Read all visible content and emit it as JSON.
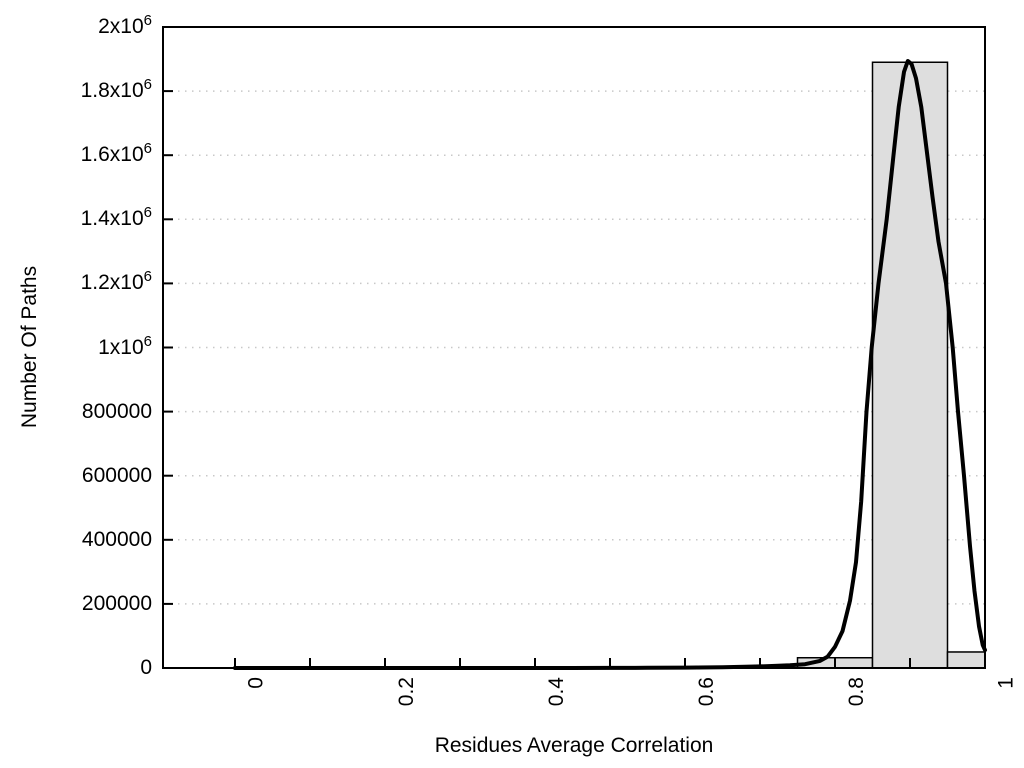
{
  "chart_data": {
    "type": "bar",
    "subtype": "histogram-with-fit-curve",
    "title": "",
    "xlabel": "Residues Average Correlation",
    "ylabel": "Number Of Paths",
    "xlim": [
      -0.096,
      1.0
    ],
    "ylim": [
      0,
      2000000
    ],
    "grid": "horizontal-dotted",
    "legend": "none",
    "x_ticks_all": [
      0,
      0.1,
      0.2,
      0.3,
      0.4,
      0.5,
      0.6,
      0.7,
      0.8,
      0.9,
      1.0
    ],
    "x_tick_labels": [
      {
        "value": 0,
        "label": "0"
      },
      {
        "value": 0.2,
        "label": "0.2"
      },
      {
        "value": 0.4,
        "label": "0.4"
      },
      {
        "value": 0.6,
        "label": "0.6"
      },
      {
        "value": 0.8,
        "label": "0.8"
      },
      {
        "value": 1.0,
        "label": "1"
      }
    ],
    "y_ticks": [
      {
        "value": 0,
        "base": "0",
        "exp": null
      },
      {
        "value": 200000,
        "base": "200000",
        "exp": null
      },
      {
        "value": 400000,
        "base": "400000",
        "exp": null
      },
      {
        "value": 600000,
        "base": "600000",
        "exp": null
      },
      {
        "value": 800000,
        "base": "800000",
        "exp": null
      },
      {
        "value": 1000000,
        "base": "1x10",
        "exp": "6"
      },
      {
        "value": 1200000,
        "base": "1.2x10",
        "exp": "6"
      },
      {
        "value": 1400000,
        "base": "1.4x10",
        "exp": "6"
      },
      {
        "value": 1600000,
        "base": "1.6x10",
        "exp": "6"
      },
      {
        "value": 1800000,
        "base": "1.8x10",
        "exp": "6"
      },
      {
        "value": 2000000,
        "base": "2x10",
        "exp": "6"
      }
    ],
    "bars": [
      {
        "x0": 0.75,
        "x1": 0.85,
        "count": 32000
      },
      {
        "x0": 0.85,
        "x1": 0.95,
        "count": 1890000
      },
      {
        "x0": 0.95,
        "x1": 1.0,
        "count": 50000
      }
    ],
    "curve": {
      "name": "fit-curve",
      "peak": {
        "x": 0.897,
        "y": 1894000
      },
      "points": [
        [
          0.0,
          0
        ],
        [
          0.05,
          0
        ],
        [
          0.1,
          0
        ],
        [
          0.15,
          0
        ],
        [
          0.2,
          0
        ],
        [
          0.25,
          0
        ],
        [
          0.3,
          0
        ],
        [
          0.35,
          0
        ],
        [
          0.4,
          0
        ],
        [
          0.45,
          100
        ],
        [
          0.5,
          300
        ],
        [
          0.55,
          700
        ],
        [
          0.6,
          1300
        ],
        [
          0.65,
          2500
        ],
        [
          0.68,
          3800
        ],
        [
          0.7,
          5000
        ],
        [
          0.72,
          6500
        ],
        [
          0.74,
          8500
        ],
        [
          0.76,
          12000
        ],
        [
          0.78,
          22000
        ],
        [
          0.79,
          35000
        ],
        [
          0.8,
          66000
        ],
        [
          0.81,
          115000
        ],
        [
          0.82,
          210000
        ],
        [
          0.828,
          330000
        ],
        [
          0.835,
          520000
        ],
        [
          0.842,
          800000
        ],
        [
          0.849,
          1000000
        ],
        [
          0.858,
          1200000
        ],
        [
          0.869,
          1400000
        ],
        [
          0.878,
          1600000
        ],
        [
          0.885,
          1750000
        ],
        [
          0.892,
          1860000
        ],
        [
          0.897,
          1894000
        ],
        [
          0.902,
          1885000
        ],
        [
          0.908,
          1840000
        ],
        [
          0.915,
          1750000
        ],
        [
          0.922,
          1620000
        ],
        [
          0.93,
          1470000
        ],
        [
          0.938,
          1330000
        ],
        [
          0.948,
          1200000
        ],
        [
          0.957,
          1000000
        ],
        [
          0.964,
          800000
        ],
        [
          0.972,
          600000
        ],
        [
          0.98,
          380000
        ],
        [
          0.986,
          240000
        ],
        [
          0.992,
          130000
        ],
        [
          0.997,
          72000
        ],
        [
          1.0,
          56000
        ]
      ]
    },
    "colors": {
      "background": "#ffffff",
      "bar_fill": "#dedede",
      "bar_border": "#000000",
      "curve": "#000000",
      "grid": "#c8c8c8",
      "axis": "#000000",
      "text": "#000000"
    }
  }
}
